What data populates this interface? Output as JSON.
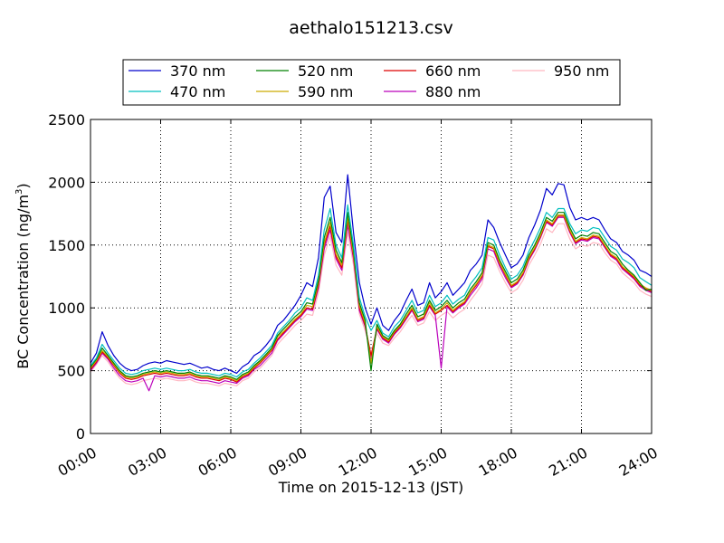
{
  "chart_data": {
    "type": "line",
    "title": "aethalo151213.csv",
    "xlabel": "Time on 2015-12-13 (JST)",
    "ylabel_main": "BC Concentration (ng/m",
    "ylabel_sup": "3",
    "ylabel_close": ")",
    "xlim": [
      0,
      24
    ],
    "ylim": [
      0,
      2500
    ],
    "x_tick_values": [
      0,
      3,
      6,
      9,
      12,
      15,
      18,
      21,
      24
    ],
    "x_tick_labels": [
      "00:00",
      "03:00",
      "06:00",
      "09:00",
      "12:00",
      "15:00",
      "18:00",
      "21:00",
      "24:00"
    ],
    "y_tick_values": [
      0,
      500,
      1000,
      1500,
      2000,
      2500
    ],
    "y_tick_labels": [
      "0",
      "500",
      "1000",
      "1500",
      "2000",
      "2500"
    ],
    "grid": true,
    "legend_position": "top-center",
    "legend_columns": 4,
    "x_units": "hours",
    "x": [
      0,
      0.25,
      0.5,
      0.75,
      1,
      1.25,
      1.5,
      1.75,
      2,
      2.25,
      2.5,
      2.75,
      3,
      3.25,
      3.5,
      3.75,
      4,
      4.25,
      4.5,
      4.75,
      5,
      5.25,
      5.5,
      5.75,
      6,
      6.25,
      6.5,
      6.75,
      7,
      7.25,
      7.5,
      7.75,
      8,
      8.25,
      8.5,
      8.75,
      9,
      9.25,
      9.5,
      9.75,
      10,
      10.25,
      10.5,
      10.75,
      11,
      11.25,
      11.5,
      11.75,
      12,
      12.25,
      12.5,
      12.75,
      13,
      13.25,
      13.5,
      13.75,
      14,
      14.25,
      14.5,
      14.75,
      15,
      15.25,
      15.5,
      15.75,
      16,
      16.25,
      16.5,
      16.75,
      17,
      17.25,
      17.5,
      17.75,
      18,
      18.25,
      18.5,
      18.75,
      19,
      19.25,
      19.5,
      19.75,
      20,
      20.25,
      20.5,
      20.75,
      21,
      21.25,
      21.5,
      21.75,
      22,
      22.25,
      22.5,
      22.75,
      23,
      23.25,
      23.5,
      23.75,
      24
    ],
    "series": [
      {
        "name": "370 nm",
        "color": "#0000cc",
        "values": [
          560,
          640,
          810,
          700,
          620,
          560,
          520,
          500,
          510,
          540,
          560,
          570,
          560,
          580,
          570,
          560,
          550,
          560,
          540,
          520,
          530,
          510,
          500,
          520,
          500,
          480,
          530,
          560,
          620,
          650,
          700,
          760,
          860,
          900,
          960,
          1020,
          1100,
          1200,
          1170,
          1400,
          1880,
          1970,
          1600,
          1520,
          2060,
          1600,
          1200,
          1000,
          870,
          1000,
          860,
          820,
          900,
          960,
          1060,
          1150,
          1020,
          1040,
          1200,
          1080,
          1130,
          1200,
          1100,
          1150,
          1200,
          1300,
          1350,
          1420,
          1700,
          1640,
          1520,
          1420,
          1320,
          1350,
          1420,
          1560,
          1660,
          1780,
          1950,
          1900,
          1990,
          1980,
          1800,
          1700,
          1720,
          1700,
          1720,
          1700,
          1620,
          1550,
          1520,
          1450,
          1420,
          1380,
          1300,
          1280,
          1250
        ]
      },
      {
        "name": "470 nm",
        "color": "#00bfbf",
        "values": [
          540,
          600,
          710,
          640,
          580,
          520,
          480,
          470,
          480,
          500,
          510,
          520,
          510,
          520,
          510,
          500,
          500,
          510,
          490,
          480,
          480,
          470,
          460,
          480,
          470,
          450,
          490,
          510,
          560,
          600,
          650,
          700,
          800,
          850,
          900,
          960,
          1000,
          1080,
          1060,
          1260,
          1620,
          1790,
          1500,
          1400,
          1820,
          1500,
          1080,
          930,
          820,
          900,
          800,
          770,
          850,
          900,
          980,
          1060,
          960,
          980,
          1100,
          1010,
          1040,
          1100,
          1030,
          1070,
          1100,
          1190,
          1250,
          1320,
          1560,
          1540,
          1420,
          1320,
          1230,
          1260,
          1330,
          1450,
          1540,
          1640,
          1760,
          1720,
          1790,
          1790,
          1670,
          1590,
          1620,
          1610,
          1640,
          1630,
          1560,
          1490,
          1460,
          1390,
          1360,
          1320,
          1240,
          1210,
          1180
        ]
      },
      {
        "name": "520 nm",
        "color": "#008000",
        "values": [
          530,
          590,
          680,
          620,
          560,
          500,
          460,
          450,
          460,
          480,
          490,
          500,
          490,
          500,
          490,
          480,
          480,
          490,
          470,
          460,
          460,
          450,
          440,
          460,
          450,
          430,
          470,
          490,
          540,
          580,
          630,
          680,
          780,
          830,
          880,
          930,
          970,
          1040,
          1030,
          1220,
          1560,
          1720,
          1460,
          1360,
          1760,
          1460,
          1040,
          900,
          500,
          870,
          780,
          750,
          820,
          870,
          950,
          1020,
          930,
          950,
          1060,
          980,
          1010,
          1060,
          1000,
          1040,
          1070,
          1150,
          1210,
          1280,
          1520,
          1500,
          1380,
          1290,
          1200,
          1230,
          1300,
          1420,
          1500,
          1600,
          1720,
          1690,
          1760,
          1760,
          1640,
          1550,
          1580,
          1570,
          1600,
          1590,
          1520,
          1450,
          1420,
          1350,
          1300,
          1260,
          1200,
          1140,
          1150
        ]
      },
      {
        "name": "590 nm",
        "color": "#ccaa00",
        "values": [
          520,
          580,
          660,
          610,
          550,
          490,
          450,
          440,
          450,
          470,
          480,
          490,
          480,
          490,
          480,
          470,
          470,
          480,
          460,
          450,
          450,
          440,
          430,
          450,
          440,
          420,
          460,
          480,
          530,
          570,
          620,
          670,
          770,
          810,
          860,
          910,
          950,
          1020,
          1010,
          1200,
          1520,
          1680,
          1430,
          1340,
          1720,
          1430,
          1020,
          880,
          560,
          850,
          770,
          740,
          810,
          860,
          930,
          1000,
          910,
          930,
          1040,
          960,
          990,
          1040,
          980,
          1020,
          1050,
          1130,
          1190,
          1260,
          1500,
          1480,
          1360,
          1270,
          1180,
          1210,
          1280,
          1400,
          1480,
          1580,
          1700,
          1670,
          1740,
          1740,
          1620,
          1530,
          1560,
          1550,
          1580,
          1570,
          1500,
          1430,
          1400,
          1330,
          1290,
          1250,
          1190,
          1160,
          1140
        ]
      },
      {
        "name": "660 nm",
        "color": "#dd0000",
        "values": [
          510,
          570,
          650,
          600,
          540,
          480,
          440,
          430,
          440,
          460,
          470,
          480,
          470,
          480,
          470,
          460,
          460,
          470,
          450,
          440,
          440,
          430,
          420,
          440,
          430,
          410,
          450,
          470,
          520,
          560,
          610,
          660,
          750,
          800,
          850,
          900,
          940,
          1000,
          990,
          1180,
          1500,
          1650,
          1410,
          1320,
          1700,
          1410,
          1000,
          860,
          620,
          840,
          760,
          730,
          800,
          850,
          920,
          990,
          900,
          920,
          1020,
          950,
          980,
          1020,
          970,
          1010,
          1040,
          1120,
          1180,
          1250,
          1490,
          1470,
          1350,
          1260,
          1170,
          1200,
          1270,
          1390,
          1470,
          1570,
          1690,
          1660,
          1730,
          1730,
          1610,
          1520,
          1550,
          1540,
          1570,
          1560,
          1490,
          1420,
          1390,
          1320,
          1280,
          1240,
          1180,
          1150,
          1130
        ]
      },
      {
        "name": "880 nm",
        "color": "#bb00bb",
        "values": [
          500,
          560,
          640,
          590,
          520,
          460,
          420,
          410,
          420,
          440,
          340,
          460,
          450,
          460,
          450,
          440,
          440,
          450,
          430,
          420,
          420,
          410,
          400,
          420,
          410,
          400,
          440,
          460,
          510,
          540,
          590,
          640,
          740,
          790,
          840,
          890,
          930,
          990,
          980,
          1160,
          1470,
          1620,
          1390,
          1300,
          1660,
          1390,
          980,
          850,
          600,
          830,
          750,
          720,
          790,
          840,
          910,
          980,
          890,
          910,
          1010,
          940,
          520,
          1010,
          960,
          1000,
          1030,
          1100,
          1160,
          1230,
          1470,
          1450,
          1330,
          1240,
          1160,
          1190,
          1260,
          1380,
          1460,
          1560,
          1680,
          1650,
          1720,
          1720,
          1600,
          1510,
          1540,
          1530,
          1560,
          1550,
          1480,
          1410,
          1380,
          1310,
          1270,
          1230,
          1170,
          1140,
          1120
        ]
      },
      {
        "name": "950 nm",
        "color": "#ffb6c1",
        "values": [
          490,
          550,
          620,
          570,
          500,
          440,
          400,
          390,
          400,
          420,
          430,
          440,
          430,
          440,
          430,
          420,
          420,
          430,
          410,
          400,
          400,
          390,
          380,
          400,
          390,
          380,
          420,
          440,
          490,
          520,
          570,
          620,
          710,
          760,
          810,
          860,
          900,
          950,
          940,
          1120,
          1420,
          1570,
          1340,
          1260,
          1600,
          1340,
          950,
          820,
          640,
          800,
          720,
          700,
          760,
          810,
          880,
          940,
          860,
          880,
          970,
          900,
          940,
          970,
          920,
          960,
          990,
          1060,
          1120,
          1190,
          1420,
          1400,
          1290,
          1200,
          1120,
          1150,
          1220,
          1340,
          1420,
          1510,
          1630,
          1600,
          1670,
          1670,
          1550,
          1470,
          1500,
          1490,
          1520,
          1510,
          1440,
          1380,
          1350,
          1280,
          1240,
          1200,
          1140,
          1110,
          1090
        ]
      }
    ]
  }
}
